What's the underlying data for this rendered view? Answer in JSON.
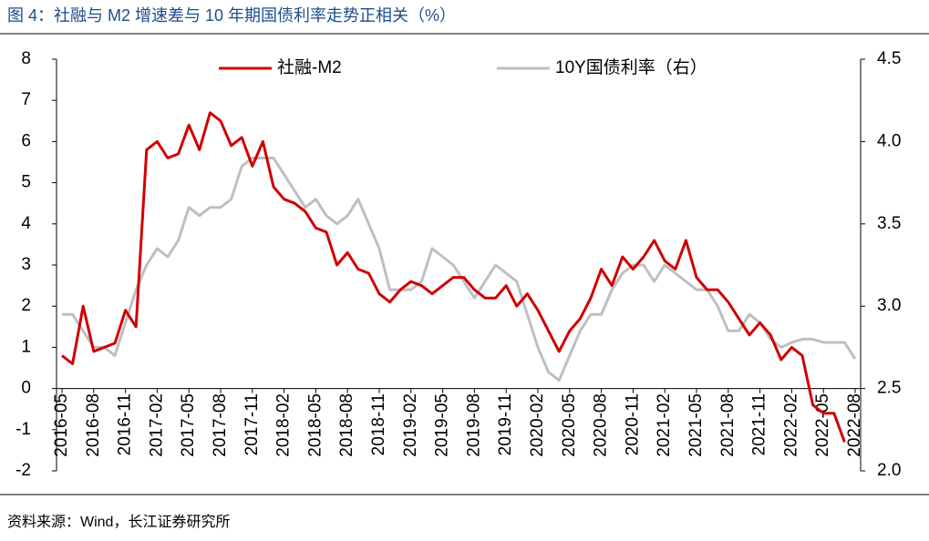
{
  "chart_data": {
    "type": "line",
    "title": "图 4：社融与 M2 增速差与 10 年期国债利率走势正相关（%）",
    "source": "资料来源：Wind，长江证券研究所",
    "categories": [
      "2016-05",
      null,
      null,
      "2016-08",
      null,
      null,
      "2016-11",
      null,
      null,
      "2017-02",
      null,
      null,
      "2017-05",
      null,
      null,
      "2017-08",
      null,
      null,
      "2017-11",
      null,
      null,
      "2018-02",
      null,
      null,
      "2018-05",
      null,
      null,
      "2018-08",
      null,
      null,
      "2018-11",
      null,
      null,
      "2019-02",
      null,
      null,
      "2019-05",
      null,
      null,
      "2019-08",
      null,
      null,
      "2019-11",
      null,
      null,
      "2020-02",
      null,
      null,
      "2020-05",
      null,
      null,
      "2020-08",
      null,
      null,
      "2020-11",
      null,
      null,
      "2021-02",
      null,
      null,
      "2021-05",
      null,
      null,
      "2021-08",
      null,
      null,
      "2021-11",
      null,
      null,
      "2022-02",
      null,
      null,
      "2022-05",
      null,
      null,
      "2022-08"
    ],
    "series": [
      {
        "name": "社融-M2",
        "color": "#d00000",
        "values": [
          0.8,
          0.6,
          2.0,
          0.9,
          1.0,
          1.1,
          1.9,
          1.5,
          5.8,
          6.0,
          5.6,
          5.7,
          6.4,
          5.8,
          6.7,
          6.5,
          5.9,
          6.1,
          5.4,
          6.0,
          4.9,
          4.6,
          4.5,
          4.3,
          3.9,
          3.8,
          3.0,
          3.3,
          2.9,
          2.8,
          2.3,
          2.1,
          2.4,
          2.6,
          2.5,
          2.3,
          2.5,
          2.7,
          2.7,
          2.4,
          2.2,
          2.2,
          2.5,
          2.0,
          2.3,
          1.9,
          1.4,
          0.9,
          1.4,
          1.7,
          2.2,
          2.9,
          2.5,
          3.2,
          2.9,
          3.2,
          3.6,
          3.1,
          2.9,
          3.6,
          2.7,
          2.4,
          2.4,
          2.1,
          1.7,
          1.3,
          1.6,
          1.3,
          0.7,
          1.0,
          0.8,
          -0.4,
          -0.6,
          -0.6,
          -1.3,
          null
        ]
      },
      {
        "name": "10Y国债利率（右）",
        "color": "#bfbfbf",
        "axis": "y2",
        "values": [
          2.95,
          2.95,
          2.85,
          2.75,
          2.75,
          2.7,
          2.9,
          3.1,
          3.25,
          3.35,
          3.3,
          3.4,
          3.6,
          3.55,
          3.6,
          3.6,
          3.65,
          3.85,
          3.9,
          3.9,
          3.9,
          3.8,
          3.7,
          3.6,
          3.65,
          3.55,
          3.5,
          3.55,
          3.65,
          3.5,
          3.35,
          3.1,
          3.1,
          3.1,
          3.15,
          3.35,
          3.3,
          3.25,
          3.15,
          3.05,
          3.15,
          3.25,
          3.2,
          3.15,
          2.95,
          2.75,
          2.6,
          2.55,
          2.7,
          2.85,
          2.95,
          2.95,
          3.1,
          3.2,
          3.25,
          3.25,
          3.15,
          3.25,
          3.2,
          3.15,
          3.1,
          3.1,
          3.0,
          2.85,
          2.85,
          2.95,
          2.9,
          2.8,
          2.75,
          2.78,
          2.8,
          2.8,
          2.78,
          2.78,
          2.78,
          2.68
        ]
      }
    ],
    "ylim": [
      -2,
      8
    ],
    "yticks": [
      -2,
      -1,
      0,
      1,
      2,
      3,
      4,
      5,
      6,
      7,
      8
    ],
    "y2lim": [
      2,
      4.5
    ],
    "y2ticks": [
      {
        "value": 2,
        "label": "2.0"
      },
      2.5,
      {
        "value": 3,
        "label": "3.0"
      },
      3.5,
      {
        "value": 4,
        "label": "4.0"
      },
      4.5
    ],
    "legend": "top"
  }
}
